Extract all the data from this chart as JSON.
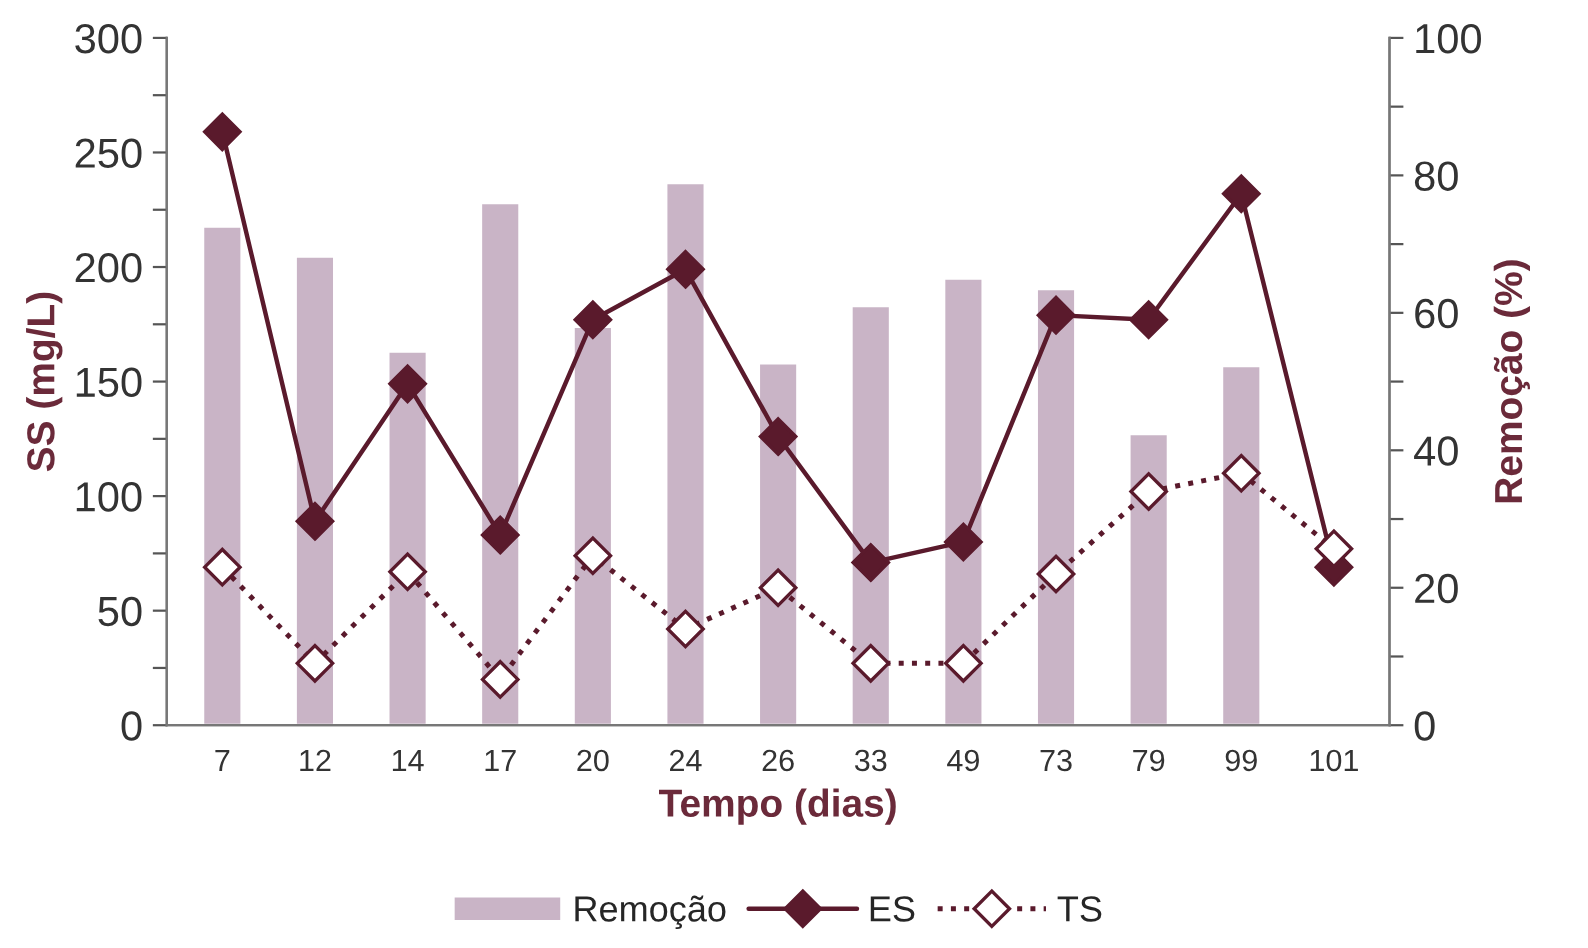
{
  "chart_data": {
    "type": "line",
    "xlabel": "Tempo (dias)",
    "ylabel": "SS (mg/L)",
    "y2label": "Remoção (%)",
    "categories": [
      "7",
      "12",
      "14",
      "17",
      "20",
      "24",
      "26",
      "33",
      "49",
      "73",
      "79",
      "99",
      "101"
    ],
    "series": [
      {
        "name": "Remoção",
        "type": "bar",
        "axis": "y2",
        "color": "#c9b4c6",
        "values": [
          72.6,
          68.2,
          54.4,
          76,
          58,
          78.9,
          52.7,
          61,
          65,
          63.5,
          42.4,
          52.3,
          null
        ]
      },
      {
        "name": "ES",
        "color": "#5a1a2c",
        "marker": "diamond",
        "line_style": "solid",
        "values": [
          259,
          89,
          149,
          83,
          177,
          199,
          126,
          71,
          80,
          179,
          177,
          232,
          69
        ]
      },
      {
        "name": "TS",
        "color": "#5a1a2c",
        "marker": "diamond",
        "line_style": "dotted",
        "values": [
          69,
          27,
          67,
          20,
          74,
          42,
          60,
          27,
          27,
          66,
          102,
          110,
          77
        ]
      }
    ],
    "ylim": [
      0,
      300
    ],
    "yticks": [
      0,
      {
        "value": 25,
        "label": null
      },
      50,
      {
        "value": 75,
        "label": null
      },
      100,
      {
        "value": 125,
        "label": null
      },
      150,
      {
        "value": 175,
        "label": null
      },
      200,
      {
        "value": 225,
        "label": null
      },
      250,
      {
        "value": 275,
        "label": null
      },
      300
    ],
    "y2lim": [
      0,
      100
    ],
    "y2ticks": [
      0,
      {
        "value": 10,
        "label": null
      },
      20,
      {
        "value": 30,
        "label": null
      },
      40,
      {
        "value": 50,
        "label": null
      },
      60,
      {
        "value": 70,
        "label": null
      },
      80,
      {
        "value": 90,
        "label": null
      },
      100
    ],
    "grid": false,
    "legend": "bottom"
  }
}
